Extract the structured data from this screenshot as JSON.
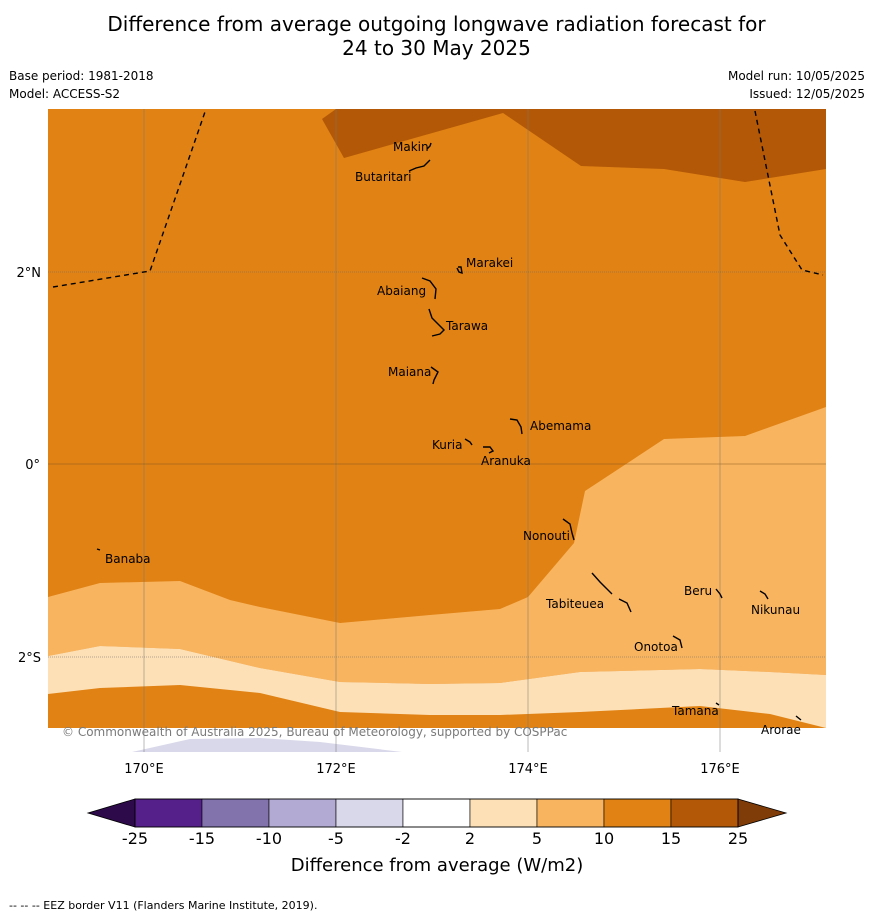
{
  "title_line1": "Difference from average outgoing longwave radiation forecast for",
  "title_line2": "24 to 30 May 2025",
  "meta": {
    "base_period": "Base period: 1981-2018",
    "model": "Model: ACCESS-S2",
    "model_run": "Model run: 10/05/2025",
    "issued": "Issued: 12/05/2025"
  },
  "map": {
    "lat_labels": [
      "2°N",
      "0°",
      "2°S"
    ],
    "lon_labels": [
      "170°E",
      "172°E",
      "174°E",
      "176°E"
    ],
    "places": [
      "Makin",
      "Butaritari",
      "Marakei",
      "Abaiang",
      "Tarawa",
      "Maiana",
      "Abemama",
      "Kuria",
      "Aranuka",
      "Nonouti",
      "Banaba",
      "Beru",
      "Nikunau",
      "Tabiteuea",
      "Onotoa",
      "Tamana",
      "Arorae"
    ],
    "copyright": "© Commonwealth of Australia 2025, Bureau of Meteorology, supported by COSPPac"
  },
  "colorbar": {
    "ticks": [
      "-25",
      "-15",
      "-10",
      "-5",
      "-2",
      "2",
      "5",
      "10",
      "15",
      "25"
    ],
    "colors": [
      "#56208a",
      "#8373ad",
      "#b2aad2",
      "#d8d8ea",
      "#ffffff",
      "#fde0b6",
      "#f9b45f",
      "#e08214",
      "#b35806"
    ],
    "under_color": "#2d0a4a",
    "over_color": "#7f3b08",
    "label": "Difference from average (W/m2)"
  },
  "footer": "--  --  -- EEZ border V11 (Flanders Marine Institute, 2019)."
}
